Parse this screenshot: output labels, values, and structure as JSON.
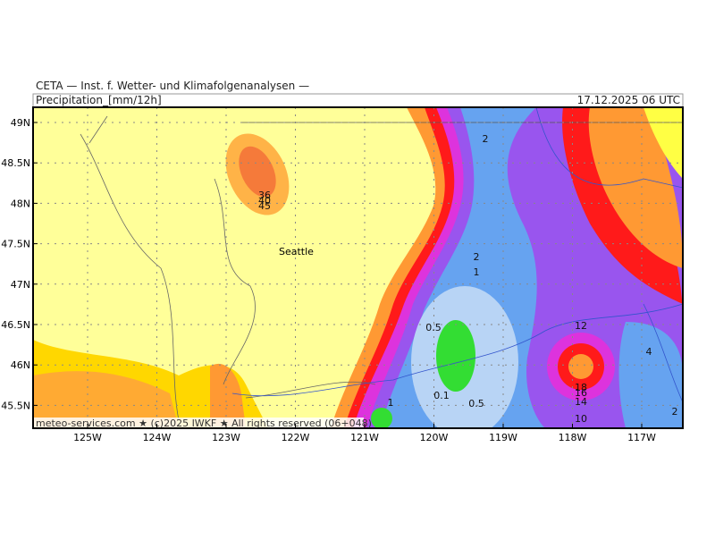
{
  "header": {
    "institute": "CETA — Inst. f. Wetter- und Klimafolgenanalysen —",
    "parameter": "Precipitation_[mm/12h]",
    "valid_time": "17.12.2025 06 UTC"
  },
  "map": {
    "lat_labels": [
      "49N",
      "48.5N",
      "48N",
      "47.5N",
      "47N",
      "46.5N",
      "46N",
      "45.5N"
    ],
    "lon_labels": [
      "125W",
      "124W",
      "123W",
      "122W",
      "121W",
      "120W",
      "119W",
      "118W",
      "117W"
    ],
    "places": [
      "Seattle"
    ],
    "contour_labels": [
      "36",
      "40",
      "45",
      "2",
      "2",
      "1",
      "0.5",
      "0.1",
      "0.5",
      "1",
      "12",
      "4",
      "18",
      "16",
      "14",
      "10",
      "2"
    ]
  },
  "footer": "meteo-services.com ★ (c)2025 IWKF ★ All rights reserved (06+048)"
}
